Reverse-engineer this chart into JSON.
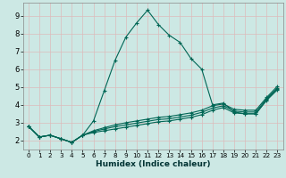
{
  "xlabel": "Humidex (Indice chaleur)",
  "background_color": "#cce8e4",
  "grid_color": "#ddbbbb",
  "line_color": "#006655",
  "series": [
    {
      "x": [
        0,
        1,
        2,
        3,
        4,
        5,
        6,
        7,
        8,
        9,
        10,
        11,
        12,
        13,
        14,
        15,
        16,
        17,
        18,
        19,
        20,
        21,
        22,
        23
      ],
      "y": [
        2.8,
        2.2,
        2.3,
        2.1,
        1.9,
        2.3,
        3.1,
        4.8,
        6.5,
        7.8,
        8.6,
        9.3,
        8.5,
        7.9,
        7.5,
        6.6,
        6.0,
        4.0,
        4.1,
        3.6,
        3.5,
        3.5,
        4.3,
        4.9
      ]
    },
    {
      "x": [
        0,
        1,
        2,
        3,
        4,
        5,
        6,
        7,
        8,
        9,
        10,
        11,
        12,
        13,
        14,
        15,
        16,
        17,
        18,
        19,
        20,
        21,
        22,
        23
      ],
      "y": [
        2.8,
        2.2,
        2.3,
        2.1,
        1.9,
        2.3,
        2.45,
        2.55,
        2.65,
        2.75,
        2.85,
        2.95,
        3.05,
        3.1,
        3.2,
        3.3,
        3.45,
        3.7,
        3.85,
        3.55,
        3.5,
        3.5,
        4.25,
        4.85
      ]
    },
    {
      "x": [
        0,
        1,
        2,
        3,
        4,
        5,
        6,
        7,
        8,
        9,
        10,
        11,
        12,
        13,
        14,
        15,
        16,
        17,
        18,
        19,
        20,
        21,
        22,
        23
      ],
      "y": [
        2.8,
        2.2,
        2.3,
        2.1,
        1.9,
        2.3,
        2.5,
        2.65,
        2.78,
        2.88,
        2.98,
        3.08,
        3.18,
        3.22,
        3.32,
        3.42,
        3.58,
        3.82,
        3.95,
        3.65,
        3.6,
        3.6,
        4.35,
        4.95
      ]
    },
    {
      "x": [
        0,
        1,
        2,
        3,
        4,
        5,
        6,
        7,
        8,
        9,
        10,
        11,
        12,
        13,
        14,
        15,
        16,
        17,
        18,
        19,
        20,
        21,
        22,
        23
      ],
      "y": [
        2.8,
        2.2,
        2.3,
        2.1,
        1.9,
        2.3,
        2.55,
        2.72,
        2.88,
        3.0,
        3.1,
        3.2,
        3.3,
        3.35,
        3.45,
        3.55,
        3.7,
        3.95,
        4.05,
        3.75,
        3.7,
        3.7,
        4.42,
        5.05
      ]
    }
  ],
  "xlim": [
    -0.5,
    23.5
  ],
  "ylim": [
    1.5,
    9.7
  ],
  "yticks": [
    2,
    3,
    4,
    5,
    6,
    7,
    8,
    9
  ],
  "xticks": [
    0,
    1,
    2,
    3,
    4,
    5,
    6,
    7,
    8,
    9,
    10,
    11,
    12,
    13,
    14,
    15,
    16,
    17,
    18,
    19,
    20,
    21,
    22,
    23
  ],
  "xlabel_fontsize": 6.5,
  "ytick_fontsize": 6,
  "xtick_fontsize": 5.2,
  "linewidth": 0.8,
  "markersize": 3.5,
  "figsize": [
    3.2,
    2.0
  ],
  "dpi": 100
}
